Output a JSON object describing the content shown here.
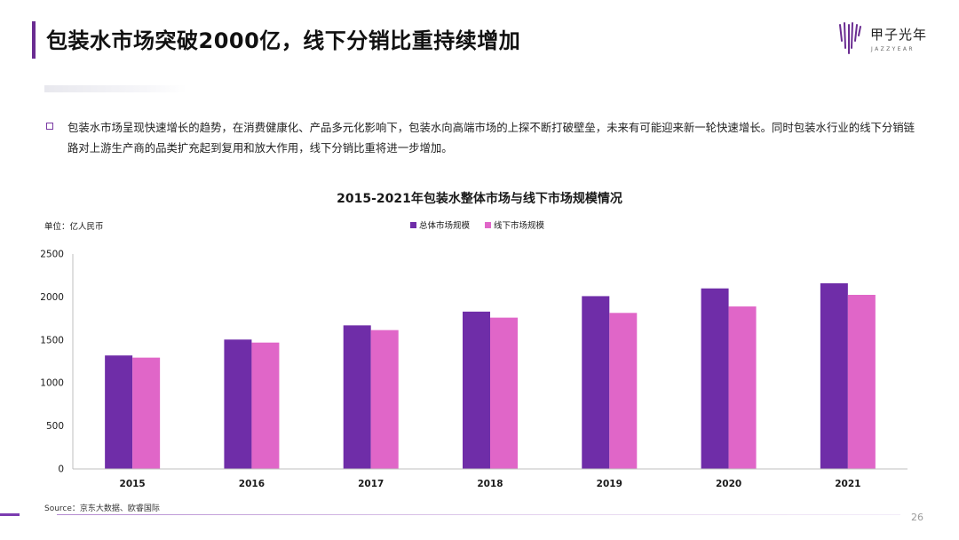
{
  "header": {
    "title": "包装水市场突破2000亿，线下分销比重持续增加"
  },
  "logo": {
    "name": "甲子光年",
    "sub": "JAZZYEAR"
  },
  "body": {
    "bullet_text": "包装水市场呈现快速增长的趋势，在消费健康化、产品多元化影响下，包装水向高端市场的上探不断打破壁垒，未来有可能迎来新一轮快速增长。同时包装水行业的线下分销链路对上游生产商的品类扩充起到复用和放大作用，线下分销比重将进一步增加。"
  },
  "chart_data": {
    "type": "bar",
    "title": "2015-2021年包装水整体市场与线下市场规模情况",
    "unit_label": "单位：亿人民币",
    "categories": [
      "2015",
      "2016",
      "2017",
      "2018",
      "2019",
      "2020",
      "2021"
    ],
    "series": [
      {
        "name": "总体市场规模",
        "values": [
          1320,
          1505,
          1670,
          1830,
          2010,
          2100,
          2160
        ],
        "color": "#6f2da8"
      },
      {
        "name": "线下市场规模",
        "values": [
          1295,
          1470,
          1615,
          1760,
          1815,
          1890,
          2025
        ],
        "color": "#e066c8"
      }
    ],
    "ylim": [
      0,
      2500
    ],
    "yticks": [
      0,
      500,
      1000,
      1500,
      2000,
      2500
    ],
    "grid": false,
    "legend_position": "top-center"
  },
  "footer": {
    "source": "Source：京东大数据、欧睿国际",
    "page_number": "26"
  },
  "colors": {
    "accent": "#6a2c91",
    "series1": "#6f2da8",
    "series2": "#e066c8"
  }
}
